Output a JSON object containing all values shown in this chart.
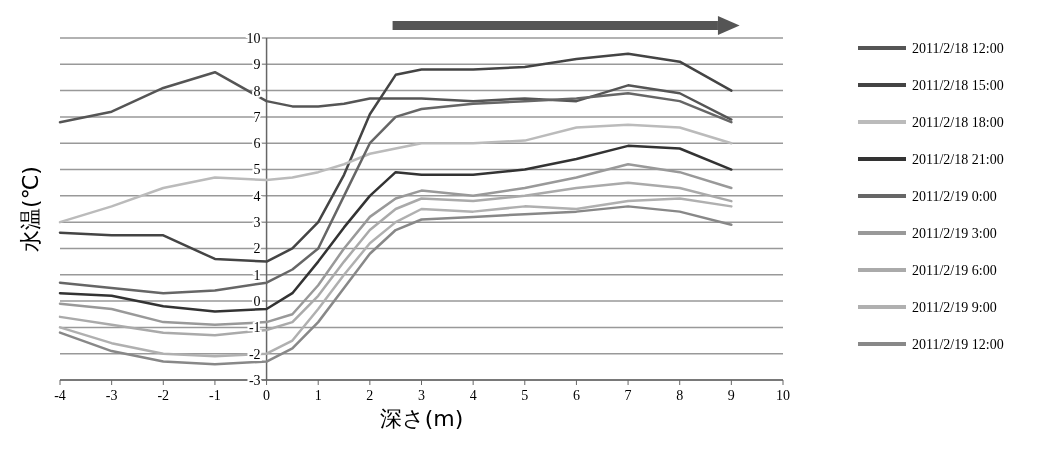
{
  "chart_data": {
    "type": "line",
    "xlabel": "深さ(m)",
    "ylabel": "水温(℃)",
    "xlim": [
      -4,
      10
    ],
    "xticks": [
      -4,
      -3,
      -2,
      -1,
      0,
      1,
      2,
      3,
      4,
      5,
      6,
      7,
      8,
      9,
      10
    ],
    "ylim": [
      -3,
      10
    ],
    "yticks": [
      -3,
      -2,
      -1,
      0,
      1,
      2,
      3,
      4,
      5,
      6,
      7,
      8,
      9,
      10
    ],
    "x": [
      -4,
      -3,
      -2,
      -1,
      0,
      0.5,
      1,
      1.5,
      2,
      2.5,
      3,
      4,
      5,
      6,
      7,
      8,
      9
    ],
    "grid": "y",
    "legend": "right",
    "marker": "none",
    "line_style": "solid",
    "series": [
      {
        "name": "2011/2/18 12:00",
        "color": "#555555",
        "values": [
          6.8,
          7.2,
          8.1,
          8.7,
          7.6,
          7.4,
          7.4,
          7.5,
          7.7,
          7.7,
          7.7,
          7.6,
          7.7,
          7.6,
          8.2,
          7.9,
          6.9
        ]
      },
      {
        "name": "2011/2/18 15:00",
        "color": "#444444",
        "values": [
          2.6,
          2.5,
          2.5,
          1.6,
          1.5,
          2.0,
          3.0,
          4.8,
          7.1,
          8.6,
          8.8,
          8.8,
          8.9,
          9.2,
          9.4,
          9.1,
          8.0
        ]
      },
      {
        "name": "2011/2/18 18:00",
        "color": "#bbbbbb",
        "values": [
          3.0,
          3.6,
          4.3,
          4.7,
          4.6,
          4.7,
          4.9,
          5.2,
          5.6,
          5.8,
          6.0,
          6.0,
          6.1,
          6.6,
          6.7,
          6.6,
          6.0
        ]
      },
      {
        "name": "2011/2/18 21:00",
        "color": "#333333",
        "values": [
          0.3,
          0.2,
          -0.2,
          -0.4,
          -0.3,
          0.3,
          1.5,
          2.8,
          4.0,
          4.9,
          4.8,
          4.8,
          5.0,
          5.4,
          5.9,
          5.8,
          5.0
        ]
      },
      {
        "name": "2011/2/19 0:00",
        "color": "#666666",
        "values": [
          0.7,
          0.5,
          0.3,
          0.4,
          0.7,
          1.2,
          2.0,
          4.0,
          6.0,
          7.0,
          7.3,
          7.5,
          7.6,
          7.7,
          7.9,
          7.6,
          6.8
        ]
      },
      {
        "name": "2011/2/19 3:00",
        "color": "#999999",
        "values": [
          -0.1,
          -0.3,
          -0.8,
          -0.9,
          -0.8,
          -0.5,
          0.6,
          2.0,
          3.2,
          3.9,
          4.2,
          4.0,
          4.3,
          4.7,
          5.2,
          4.9,
          4.3
        ]
      },
      {
        "name": "2011/2/19 6:00",
        "color": "#aaaaaa",
        "values": [
          -0.6,
          -0.9,
          -1.2,
          -1.3,
          -1.1,
          -0.8,
          0.2,
          1.5,
          2.7,
          3.5,
          3.9,
          3.8,
          4.0,
          4.3,
          4.5,
          4.3,
          3.8
        ]
      },
      {
        "name": "2011/2/19 9:00",
        "color": "#b0b0b0",
        "values": [
          -1.0,
          -1.6,
          -2.0,
          -2.1,
          -2.0,
          -1.5,
          -0.3,
          1.0,
          2.2,
          3.0,
          3.5,
          3.4,
          3.6,
          3.5,
          3.8,
          3.9,
          3.6
        ]
      },
      {
        "name": "2011/2/19 12:00",
        "color": "#888888",
        "values": [
          -1.2,
          -1.9,
          -2.3,
          -2.4,
          -2.3,
          -1.8,
          -0.8,
          0.5,
          1.8,
          2.7,
          3.1,
          3.2,
          3.3,
          3.4,
          3.6,
          3.4,
          2.9
        ]
      }
    ]
  }
}
